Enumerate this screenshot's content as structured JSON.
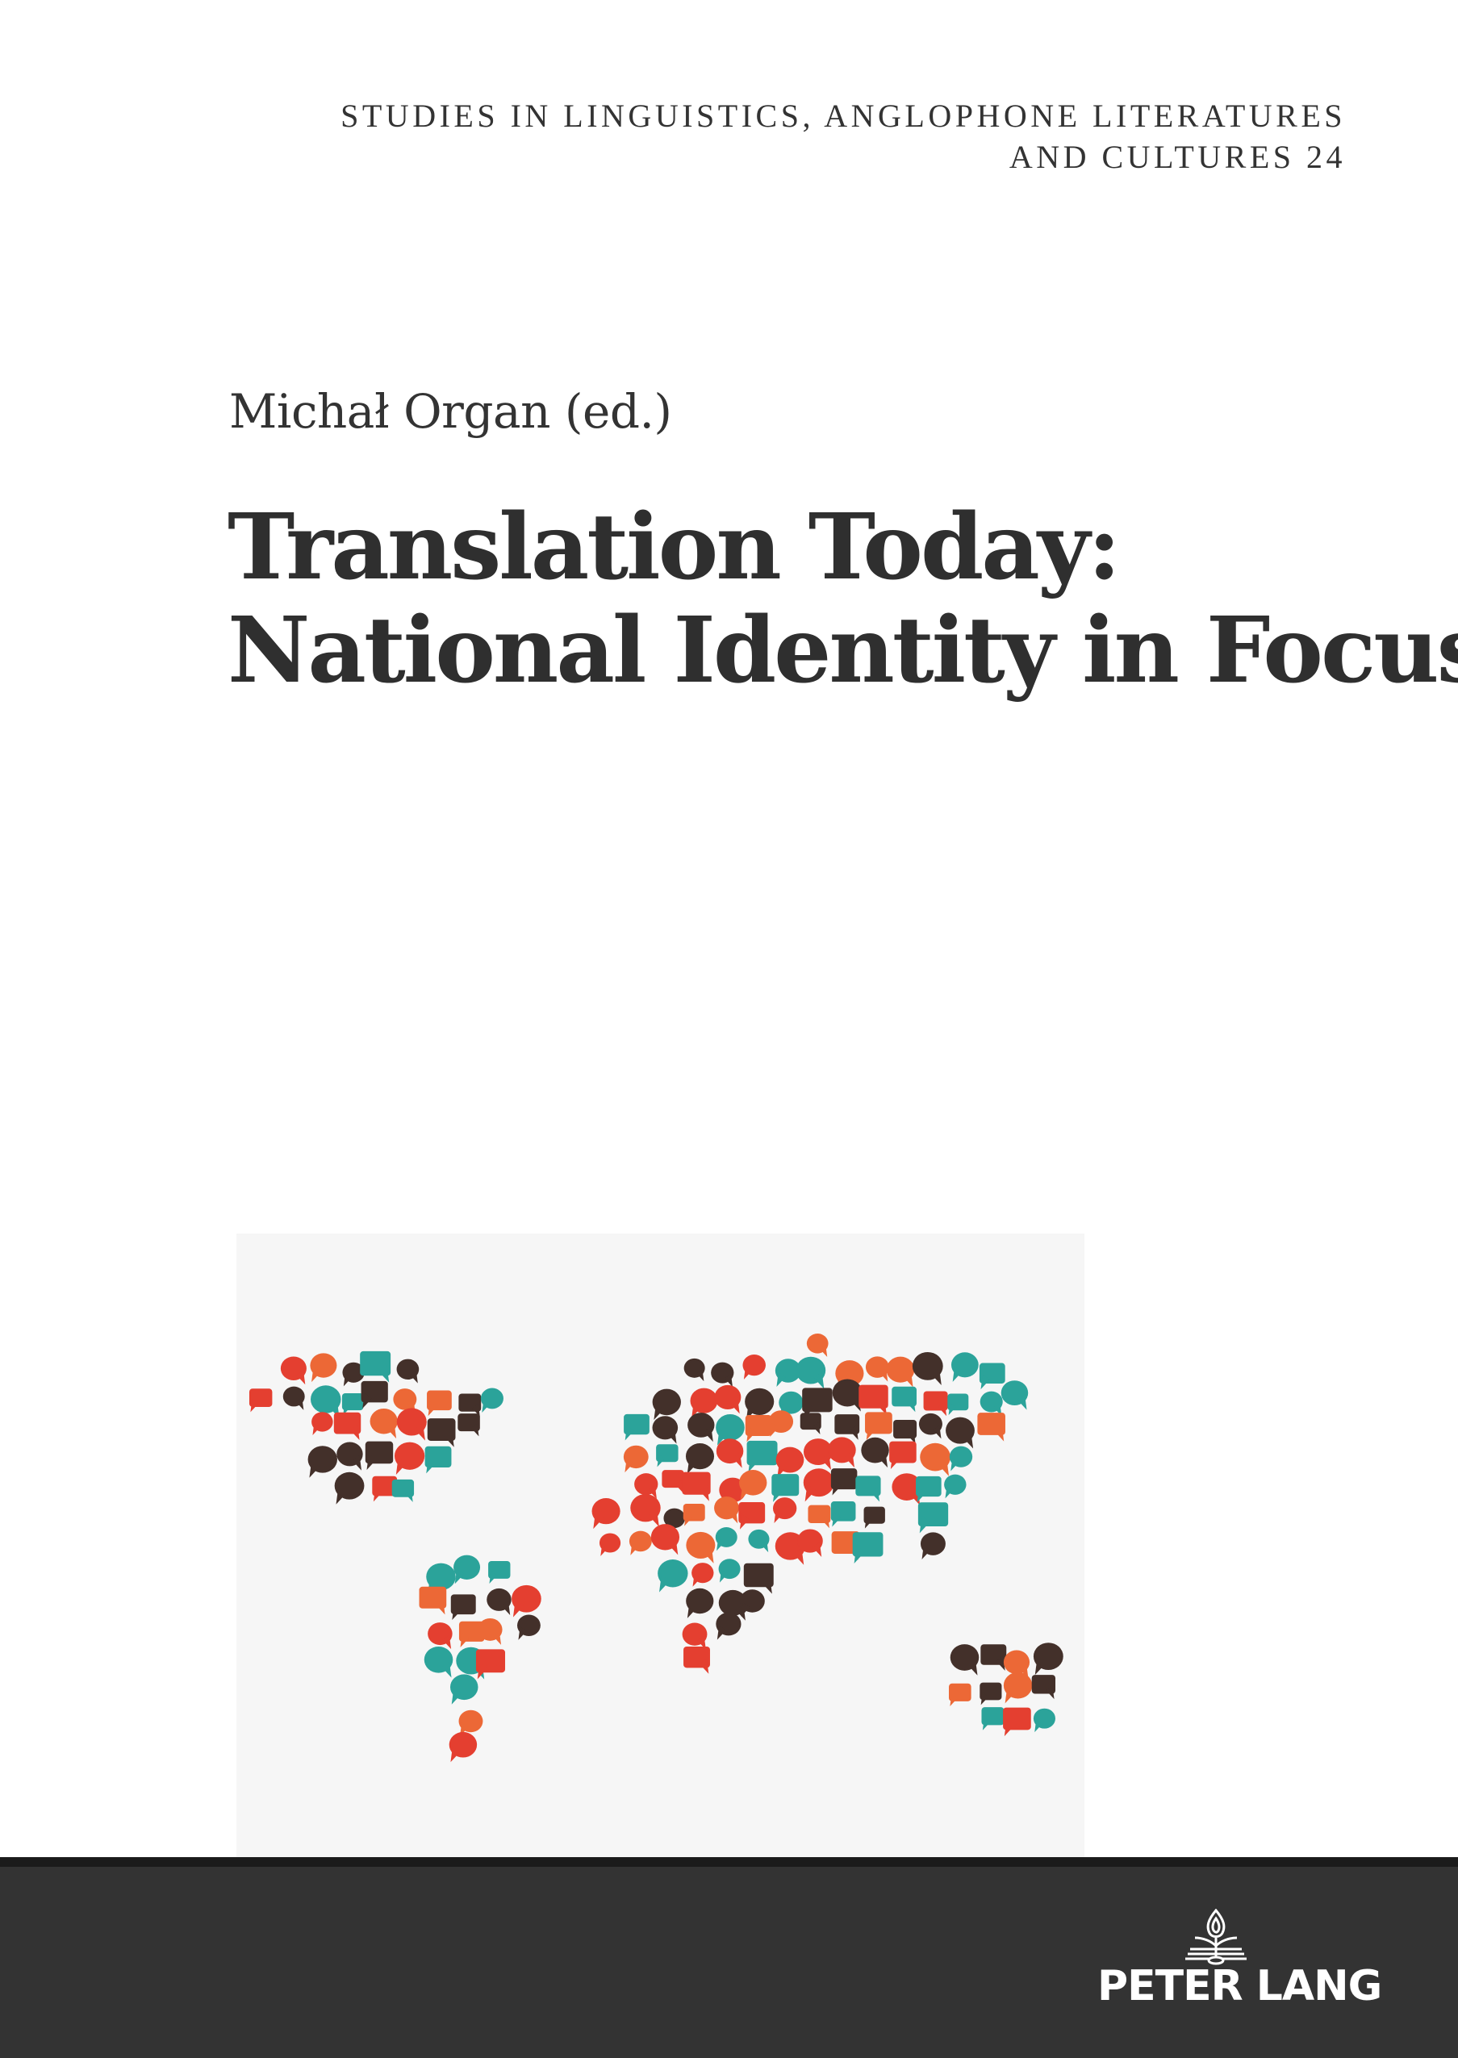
{
  "series": {
    "line1": "STUDIES IN LINGUISTICS, ANGLOPHONE LITERATURES",
    "line2": "AND CULTURES 24"
  },
  "author": "Michał Organ (ed.)",
  "title": {
    "line1": "Translation Today:",
    "line2": "National Identity in Focus"
  },
  "illustration": {
    "subject": "world-map-of-speech-bubbles",
    "palette": [
      "#2ba39a",
      "#ec6836",
      "#e43f30",
      "#43302a"
    ],
    "background": "#f6f6f6"
  },
  "publisher": {
    "name": "PETER LANG",
    "logo_icon": "flame-book-icon",
    "band_color": "#333333"
  }
}
